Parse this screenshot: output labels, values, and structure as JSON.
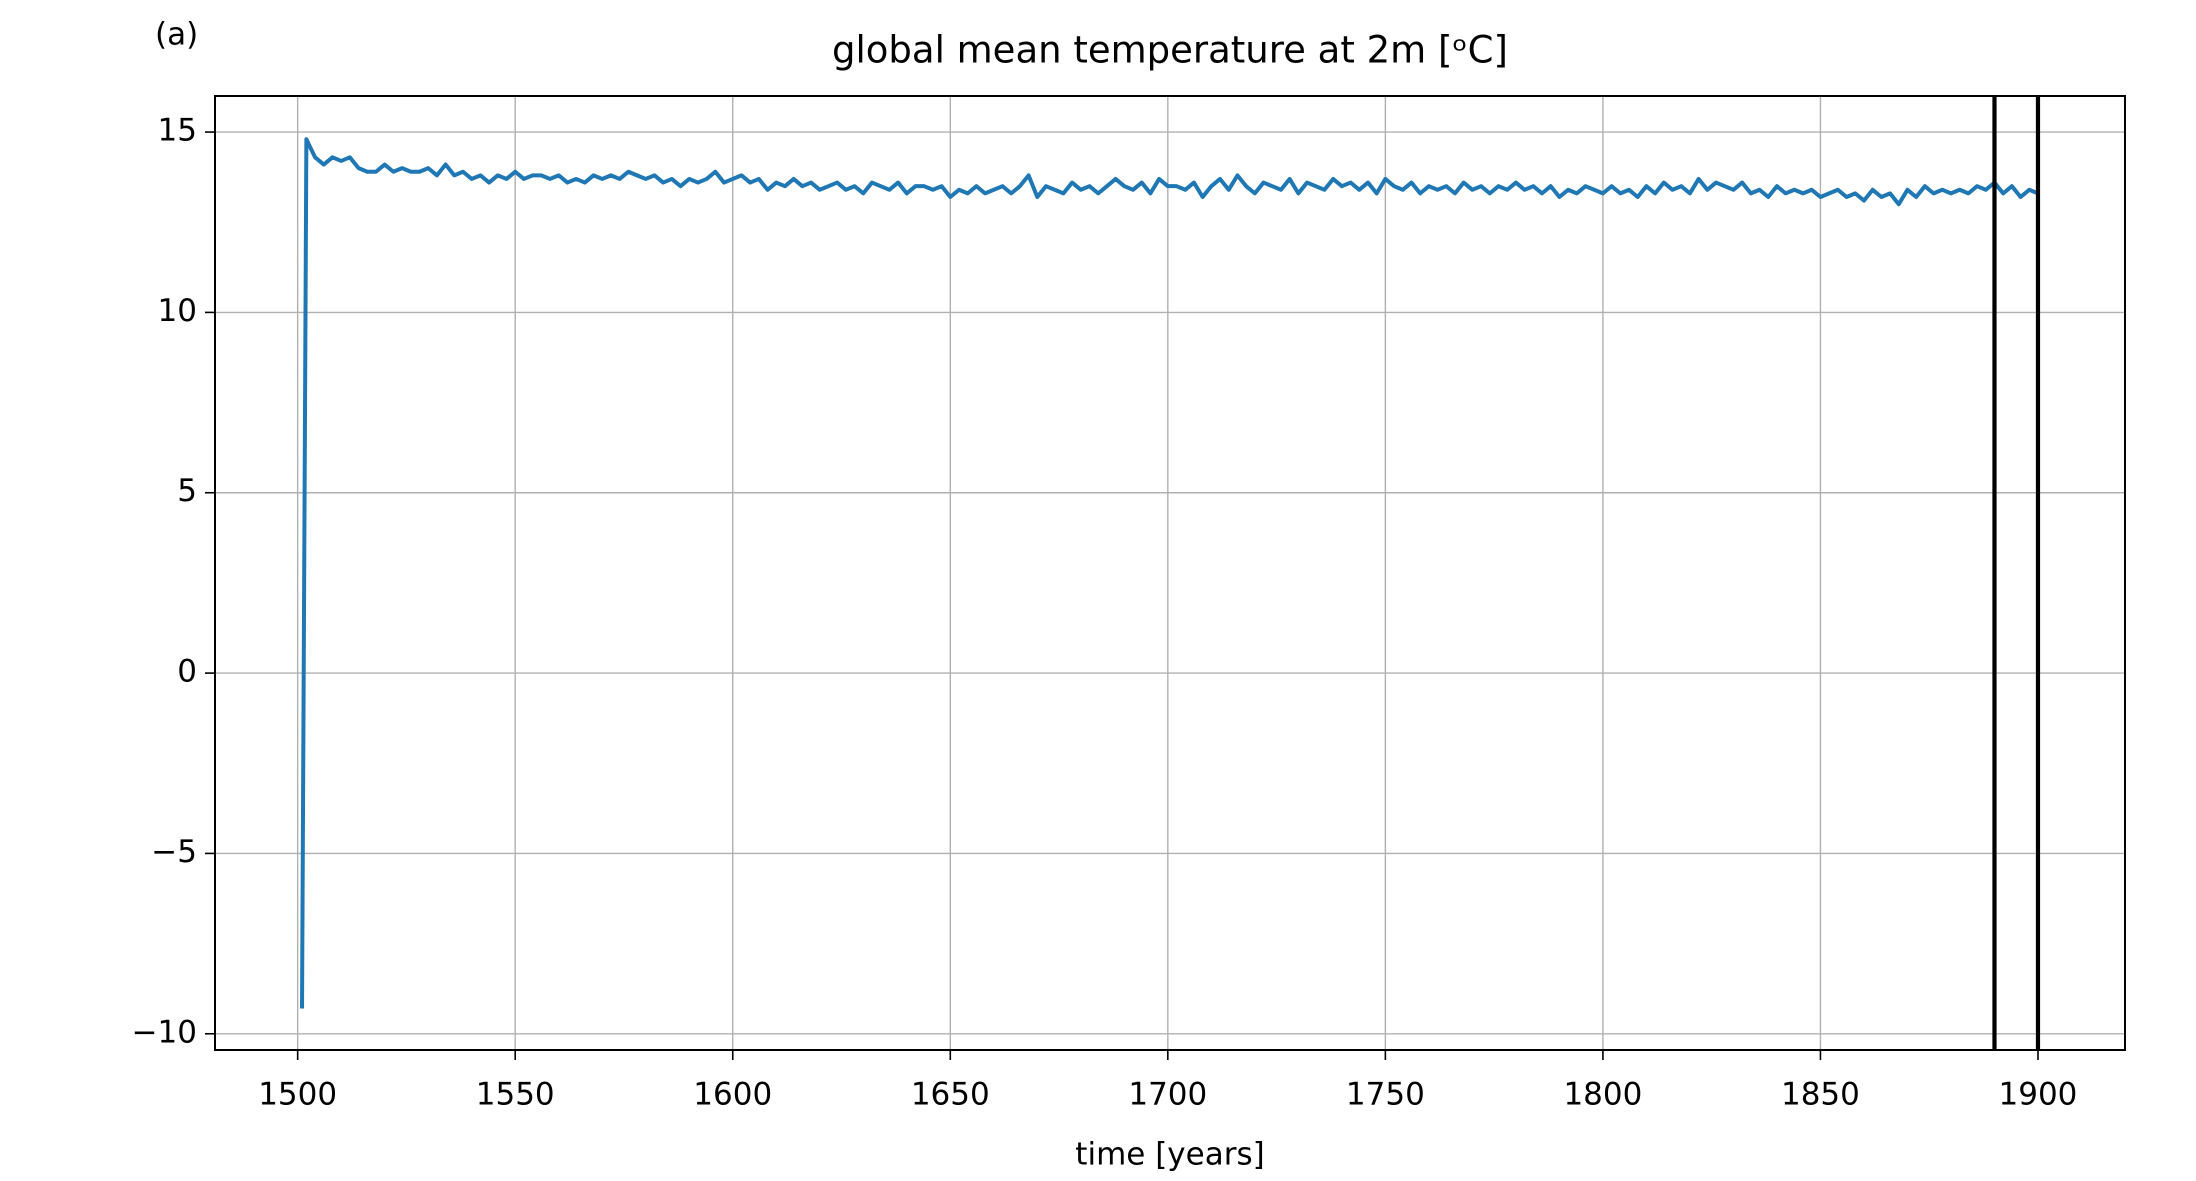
{
  "chart_data": {
    "type": "line",
    "title": "global mean temperature at 2m [ᵒC]",
    "panel_label": "(a)",
    "xlabel": "time [years]",
    "x": [
      1501,
      1502,
      1504,
      1506,
      1508,
      1510,
      1512,
      1514,
      1516,
      1518,
      1520,
      1522,
      1524,
      1526,
      1528,
      1530,
      1532,
      1534,
      1536,
      1538,
      1540,
      1542,
      1544,
      1546,
      1548,
      1550,
      1552,
      1554,
      1556,
      1558,
      1560,
      1562,
      1564,
      1566,
      1568,
      1570,
      1572,
      1574,
      1576,
      1578,
      1580,
      1582,
      1584,
      1586,
      1588,
      1590,
      1592,
      1594,
      1596,
      1598,
      1600,
      1602,
      1604,
      1606,
      1608,
      1610,
      1612,
      1614,
      1616,
      1618,
      1620,
      1622,
      1624,
      1626,
      1628,
      1630,
      1632,
      1634,
      1636,
      1638,
      1640,
      1642,
      1644,
      1646,
      1648,
      1650,
      1652,
      1654,
      1656,
      1658,
      1660,
      1662,
      1664,
      1666,
      1668,
      1670,
      1672,
      1674,
      1676,
      1678,
      1680,
      1682,
      1684,
      1686,
      1688,
      1690,
      1692,
      1694,
      1696,
      1698,
      1700,
      1702,
      1704,
      1706,
      1708,
      1710,
      1712,
      1714,
      1716,
      1718,
      1720,
      1722,
      1724,
      1726,
      1728,
      1730,
      1732,
      1734,
      1736,
      1738,
      1740,
      1742,
      1744,
      1746,
      1748,
      1750,
      1752,
      1754,
      1756,
      1758,
      1760,
      1762,
      1764,
      1766,
      1768,
      1770,
      1772,
      1774,
      1776,
      1778,
      1780,
      1782,
      1784,
      1786,
      1788,
      1790,
      1792,
      1794,
      1796,
      1798,
      1800,
      1802,
      1804,
      1806,
      1808,
      1810,
      1812,
      1814,
      1816,
      1818,
      1820,
      1822,
      1824,
      1826,
      1828,
      1830,
      1832,
      1834,
      1836,
      1838,
      1840,
      1842,
      1844,
      1846,
      1848,
      1850,
      1852,
      1854,
      1856,
      1858,
      1860,
      1862,
      1864,
      1866,
      1868,
      1870,
      1872,
      1874,
      1876,
      1878,
      1880,
      1882,
      1884,
      1886,
      1888,
      1890,
      1892,
      1894,
      1896,
      1898,
      1900
    ],
    "series": [
      {
        "color": "#1f77b4",
        "values": [
          -9.3,
          14.8,
          14.3,
          14.1,
          14.3,
          14.2,
          14.3,
          14.0,
          13.9,
          13.9,
          14.1,
          13.9,
          14.0,
          13.9,
          13.9,
          14.0,
          13.8,
          14.1,
          13.8,
          13.9,
          13.7,
          13.8,
          13.6,
          13.8,
          13.7,
          13.9,
          13.7,
          13.8,
          13.8,
          13.7,
          13.8,
          13.6,
          13.7,
          13.6,
          13.8,
          13.7,
          13.8,
          13.7,
          13.9,
          13.8,
          13.7,
          13.8,
          13.6,
          13.7,
          13.5,
          13.7,
          13.6,
          13.7,
          13.9,
          13.6,
          13.7,
          13.8,
          13.6,
          13.7,
          13.4,
          13.6,
          13.5,
          13.7,
          13.5,
          13.6,
          13.4,
          13.5,
          13.6,
          13.4,
          13.5,
          13.3,
          13.6,
          13.5,
          13.4,
          13.6,
          13.3,
          13.5,
          13.5,
          13.4,
          13.5,
          13.2,
          13.4,
          13.3,
          13.5,
          13.3,
          13.4,
          13.5,
          13.3,
          13.5,
          13.8,
          13.2,
          13.5,
          13.4,
          13.3,
          13.6,
          13.4,
          13.5,
          13.3,
          13.5,
          13.7,
          13.5,
          13.4,
          13.6,
          13.3,
          13.7,
          13.5,
          13.5,
          13.4,
          13.6,
          13.2,
          13.5,
          13.7,
          13.4,
          13.8,
          13.5,
          13.3,
          13.6,
          13.5,
          13.4,
          13.7,
          13.3,
          13.6,
          13.5,
          13.4,
          13.7,
          13.5,
          13.6,
          13.4,
          13.6,
          13.3,
          13.7,
          13.5,
          13.4,
          13.6,
          13.3,
          13.5,
          13.4,
          13.5,
          13.3,
          13.6,
          13.4,
          13.5,
          13.3,
          13.5,
          13.4,
          13.6,
          13.4,
          13.5,
          13.3,
          13.5,
          13.2,
          13.4,
          13.3,
          13.5,
          13.4,
          13.3,
          13.5,
          13.3,
          13.4,
          13.2,
          13.5,
          13.3,
          13.6,
          13.4,
          13.5,
          13.3,
          13.7,
          13.4,
          13.6,
          13.5,
          13.4,
          13.6,
          13.3,
          13.4,
          13.2,
          13.5,
          13.3,
          13.4,
          13.3,
          13.4,
          13.2,
          13.3,
          13.4,
          13.2,
          13.3,
          13.1,
          13.4,
          13.2,
          13.3,
          13.0,
          13.4,
          13.2,
          13.5,
          13.3,
          13.4,
          13.3,
          13.4,
          13.3,
          13.5,
          13.4,
          13.6,
          13.3,
          13.5,
          13.2,
          13.4,
          13.3
        ]
      }
    ],
    "vlines": [
      1890,
      1900
    ],
    "vline_color": "#000000",
    "xlim": [
      1481,
      1920
    ],
    "ylim": [
      -10.45,
      16.0
    ],
    "xticks": [
      1500,
      1550,
      1600,
      1650,
      1700,
      1750,
      1800,
      1850,
      1900
    ],
    "yticks": [
      {
        "value": -10,
        "label": "−10"
      },
      {
        "value": -5,
        "label": "−5"
      },
      0,
      5,
      10,
      15
    ],
    "grid": true
  }
}
